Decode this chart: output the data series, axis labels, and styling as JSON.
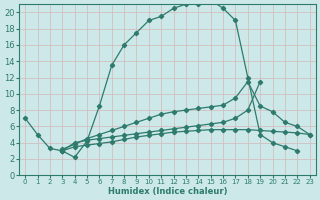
{
  "bg_color": "#cce8e8",
  "grid_color": "#aacccc",
  "line_color": "#2e7b6e",
  "xlim": [
    -0.5,
    23.5
  ],
  "ylim": [
    0,
    21
  ],
  "xticks": [
    0,
    1,
    2,
    3,
    4,
    5,
    6,
    7,
    8,
    9,
    10,
    11,
    12,
    13,
    14,
    15,
    16,
    17,
    18,
    19,
    20,
    21,
    22,
    23
  ],
  "yticks": [
    0,
    2,
    4,
    6,
    8,
    10,
    12,
    14,
    16,
    18,
    20
  ],
  "xlabel": "Humidex (Indice chaleur)",
  "line1_x": [
    0,
    1,
    2,
    3,
    4,
    5,
    6,
    7,
    8,
    9,
    10,
    11,
    12,
    13,
    14,
    15,
    16,
    17,
    18,
    19,
    20,
    21,
    22
  ],
  "line1_y": [
    7.0,
    5.0,
    3.3,
    3.0,
    2.2,
    4.2,
    8.5,
    13.5,
    16.0,
    17.5,
    19.0,
    19.5,
    20.5,
    21.0,
    21.0,
    21.5,
    20.5,
    19.0,
    12.0,
    5.0,
    4.0,
    3.5,
    3.0
  ],
  "line2_x": [
    3,
    4,
    5,
    6,
    7,
    8,
    9,
    10,
    11,
    12,
    13,
    14,
    15,
    16,
    17,
    18,
    19,
    20,
    21,
    22,
    23
  ],
  "line2_y": [
    3.0,
    3.5,
    3.7,
    3.9,
    4.1,
    4.4,
    4.7,
    4.9,
    5.1,
    5.3,
    5.4,
    5.5,
    5.6,
    5.6,
    5.6,
    5.6,
    5.5,
    5.4,
    5.3,
    5.2,
    5.0
  ],
  "line3_x": [
    3,
    4,
    5,
    6,
    7,
    8,
    9,
    10,
    11,
    12,
    13,
    14,
    15,
    16,
    17,
    18,
    19,
    20,
    21,
    22,
    23
  ],
  "line3_y": [
    3.2,
    3.8,
    4.5,
    5.0,
    5.5,
    6.0,
    6.5,
    7.0,
    7.5,
    7.8,
    8.0,
    8.2,
    8.4,
    8.6,
    9.5,
    11.5,
    8.5,
    7.8,
    6.5,
    6.0,
    5.0
  ],
  "line4_x": [
    3,
    4,
    5,
    6,
    7,
    8,
    9,
    10,
    11,
    12,
    13,
    14,
    15,
    16,
    17,
    18,
    19
  ],
  "line4_y": [
    3.0,
    4.0,
    4.3,
    4.5,
    4.7,
    4.9,
    5.1,
    5.3,
    5.5,
    5.7,
    5.9,
    6.1,
    6.3,
    6.5,
    7.0,
    8.0,
    11.5
  ]
}
